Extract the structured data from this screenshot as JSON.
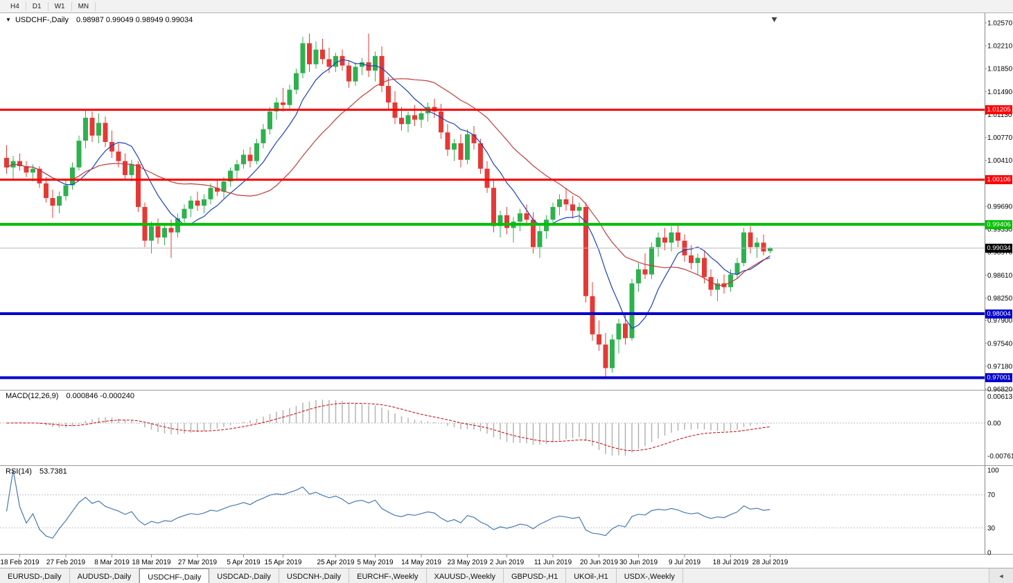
{
  "toolbar": {
    "timeframes": [
      "H4",
      "D1",
      "W1",
      "MN"
    ]
  },
  "header": {
    "menu_icon": "▼",
    "symbol": "USDCHF-,Daily",
    "ohlc": "0.98987 0.99049 0.98949 0.99034"
  },
  "indicators": {
    "macd": {
      "label": "MACD(12,26,9)",
      "values": "0.000846 -0.000240"
    },
    "rsi": {
      "label": "RSI(14)",
      "value": "53.7381"
    }
  },
  "tab_scroll_icon": "◄",
  "tabs": [
    {
      "label": "EURUSD-,Daily",
      "active": false
    },
    {
      "label": "AUDUSD-,Daily",
      "active": false
    },
    {
      "label": "USDCHF-,Daily",
      "active": true
    },
    {
      "label": "USDCAD-,Daily",
      "active": false
    },
    {
      "label": "USDCNH-,Daily",
      "active": false
    },
    {
      "label": "EURCHF-,Weekly",
      "active": false
    },
    {
      "label": "XAUUSD-,Weekly",
      "active": false
    },
    {
      "label": "GBPUSD-,H1",
      "active": false
    },
    {
      "label": "UKOil-,H1",
      "active": false
    },
    {
      "label": "USDX-,Weekly",
      "active": false
    }
  ],
  "colors": {
    "candle_up": "#2eb14e",
    "candle_down": "#e53935",
    "ma_fast": "#1a3fc4",
    "ma_slow": "#c43a3a",
    "macd_hist": "#b4b4b4",
    "macd_signal": "#cc0000",
    "rsi_line": "#4879b0",
    "axis_text": "#000000",
    "current_line": "#b8b8b8"
  },
  "chart_data": {
    "type": "candlestick",
    "symbol": "USDCHF-",
    "timeframe": "Daily",
    "ohlc_current": {
      "open": 0.98987,
      "high": 0.99049,
      "low": 0.98949,
      "close": 0.99034
    },
    "price_axis": {
      "labels": [
        "1.02570",
        "1.02210",
        "1.01850",
        "1.01490",
        "1.01130",
        "1.00770",
        "1.00410",
        "0.99690",
        "0.99330",
        "0.98970",
        "0.98610",
        "0.98250",
        "0.97900",
        "0.97540",
        "0.97180",
        "0.96820"
      ],
      "min": 0.9682,
      "max": 1.0257
    },
    "hlines": [
      {
        "price": 1.01205,
        "label": "1.01205",
        "color": "#ff0000",
        "width": 3
      },
      {
        "price": 1.00106,
        "label": "1.00106",
        "color": "#ff0000",
        "width": 3
      },
      {
        "price": 0.99406,
        "label": "0.99406",
        "color": "#00c000",
        "width": 4
      },
      {
        "price": 0.98004,
        "label": "0.98004",
        "color": "#0000cc",
        "width": 4
      },
      {
        "price": 0.97001,
        "label": "0.97001",
        "color": "#0000cc",
        "width": 4
      }
    ],
    "current_price": {
      "price": 0.99034,
      "label": "0.99034",
      "color": "#000000"
    },
    "moving_averages": [
      {
        "period": 8,
        "color": "#1a3fc4"
      },
      {
        "period": 21,
        "color": "#c43a3a"
      }
    ],
    "macd": {
      "params": [
        12,
        26,
        9
      ],
      "current_main": 0.000846,
      "current_signal": -0.00024,
      "axis_labels": [
        {
          "label": "0.00613",
          "value": 0.00613
        },
        {
          "label": "0.00",
          "value": 0
        },
        {
          "label": "-0.00761",
          "value": -0.00761
        }
      ]
    },
    "rsi": {
      "period": 14,
      "current": 53.7381,
      "levels": [
        70,
        30
      ],
      "axis_labels": [
        {
          "label": "100",
          "value": 100
        },
        {
          "label": "70",
          "value": 70
        },
        {
          "label": "30",
          "value": 30
        },
        {
          "label": "0",
          "value": 0
        }
      ]
    },
    "date_ticks": [
      {
        "label": "18 Feb 2019",
        "i": 2
      },
      {
        "label": "27 Feb 2019",
        "i": 9
      },
      {
        "label": "8 Mar 2019",
        "i": 16
      },
      {
        "label": "18 Mar 2019",
        "i": 22
      },
      {
        "label": "27 Mar 2019",
        "i": 29
      },
      {
        "label": "5 Apr 2019",
        "i": 36
      },
      {
        "label": "15 Apr 2019",
        "i": 42
      },
      {
        "label": "25 Apr 2019",
        "i": 50
      },
      {
        "label": "5 May 2019",
        "i": 56
      },
      {
        "label": "14 May 2019",
        "i": 63
      },
      {
        "label": "23 May 2019",
        "i": 70
      },
      {
        "label": "2 Jun 2019",
        "i": 76
      },
      {
        "label": "11 Jun 2019",
        "i": 83
      },
      {
        "label": "20 Jun 2019",
        "i": 90
      },
      {
        "label": "30 Jun 2019",
        "i": 96
      },
      {
        "label": "9 Jul 2019",
        "i": 103
      },
      {
        "label": "18 Jul 2019",
        "i": 110
      },
      {
        "label": "28 Jul 2019",
        "i": 116
      }
    ],
    "candles": [
      [
        1.0045,
        1.0065,
        1.002,
        1.003
      ],
      [
        1.003,
        1.0048,
        1.0012,
        1.004
      ],
      [
        1.004,
        1.0052,
        1.0025,
        1.0032
      ],
      [
        1.0032,
        1.004,
        1.0015,
        1.0022
      ],
      [
        1.0022,
        1.0035,
        1.0008,
        1.0028
      ],
      [
        1.0028,
        1.0032,
        0.9998,
        1.0005
      ],
      [
        1.0005,
        1.0015,
        0.9975,
        0.9982
      ],
      [
        0.9982,
        0.9995,
        0.9951,
        0.997
      ],
      [
        0.997,
        0.9992,
        0.9958,
        0.9985
      ],
      [
        0.9985,
        1.001,
        0.9978,
        1.0002
      ],
      [
        1.0002,
        1.0038,
        0.9995,
        1.003
      ],
      [
        1.003,
        1.008,
        1.0025,
        1.0072
      ],
      [
        1.0072,
        1.0122,
        1.006,
        1.0108
      ],
      [
        1.0108,
        1.0118,
        1.007,
        1.008
      ],
      [
        1.008,
        1.0115,
        1.0068,
        1.01
      ],
      [
        1.01,
        1.011,
        1.0062,
        1.007
      ],
      [
        1.007,
        1.0088,
        1.0045,
        1.0055
      ],
      [
        1.0055,
        1.0068,
        1.003,
        1.004
      ],
      [
        1.004,
        1.0052,
        1.001,
        1.0018
      ],
      [
        1.0018,
        1.0042,
        1.0008,
        1.0035
      ],
      [
        1.0035,
        1.004,
        0.996,
        0.9968
      ],
      [
        0.9968,
        0.9975,
        0.9905,
        0.9915
      ],
      [
        0.9915,
        0.9945,
        0.9895,
        0.9938
      ],
      [
        0.9938,
        0.995,
        0.991,
        0.992
      ],
      [
        0.992,
        0.9942,
        0.9908,
        0.9935
      ],
      [
        0.9935,
        0.9948,
        0.9888,
        0.9928
      ],
      [
        0.9928,
        0.9958,
        0.992,
        0.995
      ],
      [
        0.995,
        0.9972,
        0.994,
        0.9965
      ],
      [
        0.9965,
        0.9985,
        0.9952,
        0.9978
      ],
      [
        0.9978,
        0.9992,
        0.9962,
        0.997
      ],
      [
        0.997,
        0.9988,
        0.9958,
        0.998
      ],
      [
        0.998,
        1.0005,
        0.9972,
        0.9998
      ],
      [
        0.9998,
        1.0012,
        0.9985,
        0.9992
      ],
      [
        0.9992,
        1.0015,
        0.9982,
        1.0008
      ],
      [
        1.0008,
        1.003,
        1.0,
        1.0025
      ],
      [
        1.0025,
        1.0042,
        1.0012,
        1.0035
      ],
      [
        1.0035,
        1.0058,
        1.0028,
        1.005
      ],
      [
        1.005,
        1.0062,
        1.003,
        1.004
      ],
      [
        1.004,
        1.0075,
        1.0035,
        1.0068
      ],
      [
        1.0068,
        1.0098,
        1.006,
        1.009
      ],
      [
        1.009,
        1.0125,
        1.0082,
        1.0118
      ],
      [
        1.0118,
        1.014,
        1.0105,
        1.0132
      ],
      [
        1.0132,
        1.0155,
        1.0118,
        1.0128
      ],
      [
        1.0128,
        1.016,
        1.012,
        1.0152
      ],
      [
        1.0152,
        1.0185,
        1.0145,
        1.0178
      ],
      [
        1.0178,
        1.0235,
        1.017,
        1.0225
      ],
      [
        1.0225,
        1.024,
        1.018,
        1.0192
      ],
      [
        1.0192,
        1.0228,
        1.0185,
        1.0215
      ],
      [
        1.0215,
        1.0232,
        1.0192,
        1.02
      ],
      [
        1.02,
        1.0218,
        1.0178,
        1.0188
      ],
      [
        1.0188,
        1.021,
        1.018,
        1.0205
      ],
      [
        1.0205,
        1.0215,
        1.0182,
        1.019
      ],
      [
        1.019,
        1.0198,
        1.0155,
        1.0165
      ],
      [
        1.0165,
        1.0195,
        1.0158,
        1.0188
      ],
      [
        1.0188,
        1.0202,
        1.0175,
        1.0195
      ],
      [
        1.0195,
        1.024,
        1.0172,
        1.0182
      ],
      [
        1.0182,
        1.0212,
        1.0165,
        1.0205
      ],
      [
        1.0205,
        1.022,
        1.0148,
        1.0158
      ],
      [
        1.0158,
        1.0172,
        1.012,
        1.0132
      ],
      [
        1.0132,
        1.015,
        1.0098,
        1.0108
      ],
      [
        1.0108,
        1.0125,
        1.0088,
        1.0098
      ],
      [
        1.0098,
        1.0118,
        1.0085,
        1.0112
      ],
      [
        1.0112,
        1.0128,
        1.0095,
        1.0105
      ],
      [
        1.0105,
        1.0122,
        1.0092,
        1.0115
      ],
      [
        1.0115,
        1.0132,
        1.0102,
        1.0125
      ],
      [
        1.0125,
        1.0138,
        1.0108,
        1.0118
      ],
      [
        1.0118,
        1.013,
        1.0075,
        1.0085
      ],
      [
        1.0085,
        1.0098,
        1.0048,
        1.0058
      ],
      [
        1.0058,
        1.0075,
        1.004,
        1.0068
      ],
      [
        1.0068,
        1.0082,
        1.003,
        1.0042
      ],
      [
        1.0042,
        1.009,
        1.0035,
        1.0082
      ],
      [
        1.0082,
        1.0095,
        1.0058,
        1.0068
      ],
      [
        1.0068,
        1.0075,
        1.002,
        1.0028
      ],
      [
        1.0028,
        1.004,
        0.999,
        0.9998
      ],
      [
        0.9998,
        1.001,
        0.9928,
        0.9938
      ],
      [
        0.9938,
        0.9962,
        0.992,
        0.9955
      ],
      [
        0.9955,
        0.9968,
        0.9925,
        0.9935
      ],
      [
        0.9935,
        0.9952,
        0.9912,
        0.9945
      ],
      [
        0.9945,
        0.9965,
        0.993,
        0.9958
      ],
      [
        0.9958,
        0.9972,
        0.9938,
        0.9948
      ],
      [
        0.9948,
        0.996,
        0.9895,
        0.9905
      ],
      [
        0.9905,
        0.9938,
        0.9888,
        0.993
      ],
      [
        0.993,
        0.9955,
        0.9918,
        0.9948
      ],
      [
        0.9948,
        0.9975,
        0.994,
        0.9968
      ],
      [
        0.9968,
        0.9988,
        0.9955,
        0.998
      ],
      [
        0.998,
        0.9998,
        0.9962,
        0.9972
      ],
      [
        0.9972,
        0.9985,
        0.995,
        0.9962
      ],
      [
        0.9962,
        0.9975,
        0.9938,
        0.9968
      ],
      [
        0.9968,
        0.9975,
        0.9818,
        0.9828
      ],
      [
        0.9828,
        0.985,
        0.9758,
        0.9768
      ],
      [
        0.9768,
        0.979,
        0.9742,
        0.9752
      ],
      [
        0.9752,
        0.977,
        0.97,
        0.9715
      ],
      [
        0.9715,
        0.9768,
        0.9708,
        0.976
      ],
      [
        0.976,
        0.9792,
        0.9738,
        0.9785
      ],
      [
        0.9785,
        0.98,
        0.9752,
        0.9762
      ],
      [
        0.9762,
        0.9855,
        0.9758,
        0.9848
      ],
      [
        0.9848,
        0.988,
        0.9835,
        0.987
      ],
      [
        0.987,
        0.9895,
        0.9855,
        0.9862
      ],
      [
        0.9862,
        0.9912,
        0.9855,
        0.9905
      ],
      [
        0.9905,
        0.9928,
        0.989,
        0.992
      ],
      [
        0.992,
        0.9935,
        0.99,
        0.9912
      ],
      [
        0.9912,
        0.9938,
        0.9898,
        0.9928
      ],
      [
        0.9928,
        0.994,
        0.9905,
        0.9915
      ],
      [
        0.9915,
        0.9925,
        0.9882,
        0.9892
      ],
      [
        0.9892,
        0.9908,
        0.987,
        0.988
      ],
      [
        0.988,
        0.9895,
        0.9862,
        0.9888
      ],
      [
        0.9888,
        0.9898,
        0.9848,
        0.9858
      ],
      [
        0.9858,
        0.987,
        0.9828,
        0.9838
      ],
      [
        0.9838,
        0.9855,
        0.982,
        0.9848
      ],
      [
        0.9848,
        0.9862,
        0.9832,
        0.9842
      ],
      [
        0.9842,
        0.987,
        0.9835,
        0.9862
      ],
      [
        0.9862,
        0.9888,
        0.9855,
        0.988
      ],
      [
        0.988,
        0.9935,
        0.9875,
        0.9928
      ],
      [
        0.9928,
        0.9938,
        0.9895,
        0.9905
      ],
      [
        0.9905,
        0.992,
        0.9888,
        0.9912
      ],
      [
        0.9912,
        0.9925,
        0.9892,
        0.9898
      ],
      [
        0.98987,
        0.99049,
        0.98949,
        0.99034
      ]
    ]
  }
}
